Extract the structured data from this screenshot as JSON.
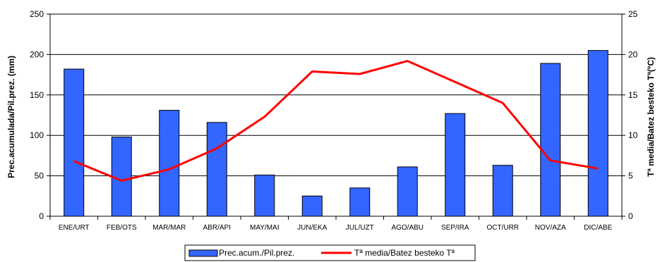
{
  "chart_data": {
    "type": "bar",
    "categories": [
      "ENE/URT",
      "FEB/OTS",
      "MAR/MAR",
      "ABR/API",
      "MAY/MAI",
      "JUN/EKA",
      "JUL/UZT",
      "AGO/ABU",
      "SEP/IRA",
      "OCT/URR",
      "NOV/AZA",
      "DIC/ABE"
    ],
    "series": [
      {
        "name": "Prec.acum./Pil.prez.",
        "type": "bar",
        "axis": "left",
        "color": "#3366ff",
        "values": [
          182,
          98,
          131,
          116,
          51,
          25,
          35,
          61,
          127,
          63,
          189,
          205
        ]
      },
      {
        "name": "Tª media/Batez besteko Tª",
        "type": "line",
        "axis": "right",
        "color": "#ff0000",
        "values": [
          6.8,
          4.4,
          5.8,
          8.4,
          12.3,
          17.9,
          17.6,
          19.2,
          16.6,
          14.0,
          6.9,
          5.9
        ]
      }
    ],
    "ylabel": "Prec.acumulada/Pil.prez. (mm)",
    "y2label": "Tª media/Batez besteko Tª(ºC)",
    "ylim": [
      0,
      250
    ],
    "y2lim": [
      0,
      25
    ],
    "yticks": [
      "0",
      "50",
      "100",
      "150",
      "200",
      "250"
    ],
    "y2ticks": [
      "0",
      "5",
      "10",
      "15",
      "20",
      "25"
    ],
    "grid": true,
    "legend": "bottom"
  }
}
